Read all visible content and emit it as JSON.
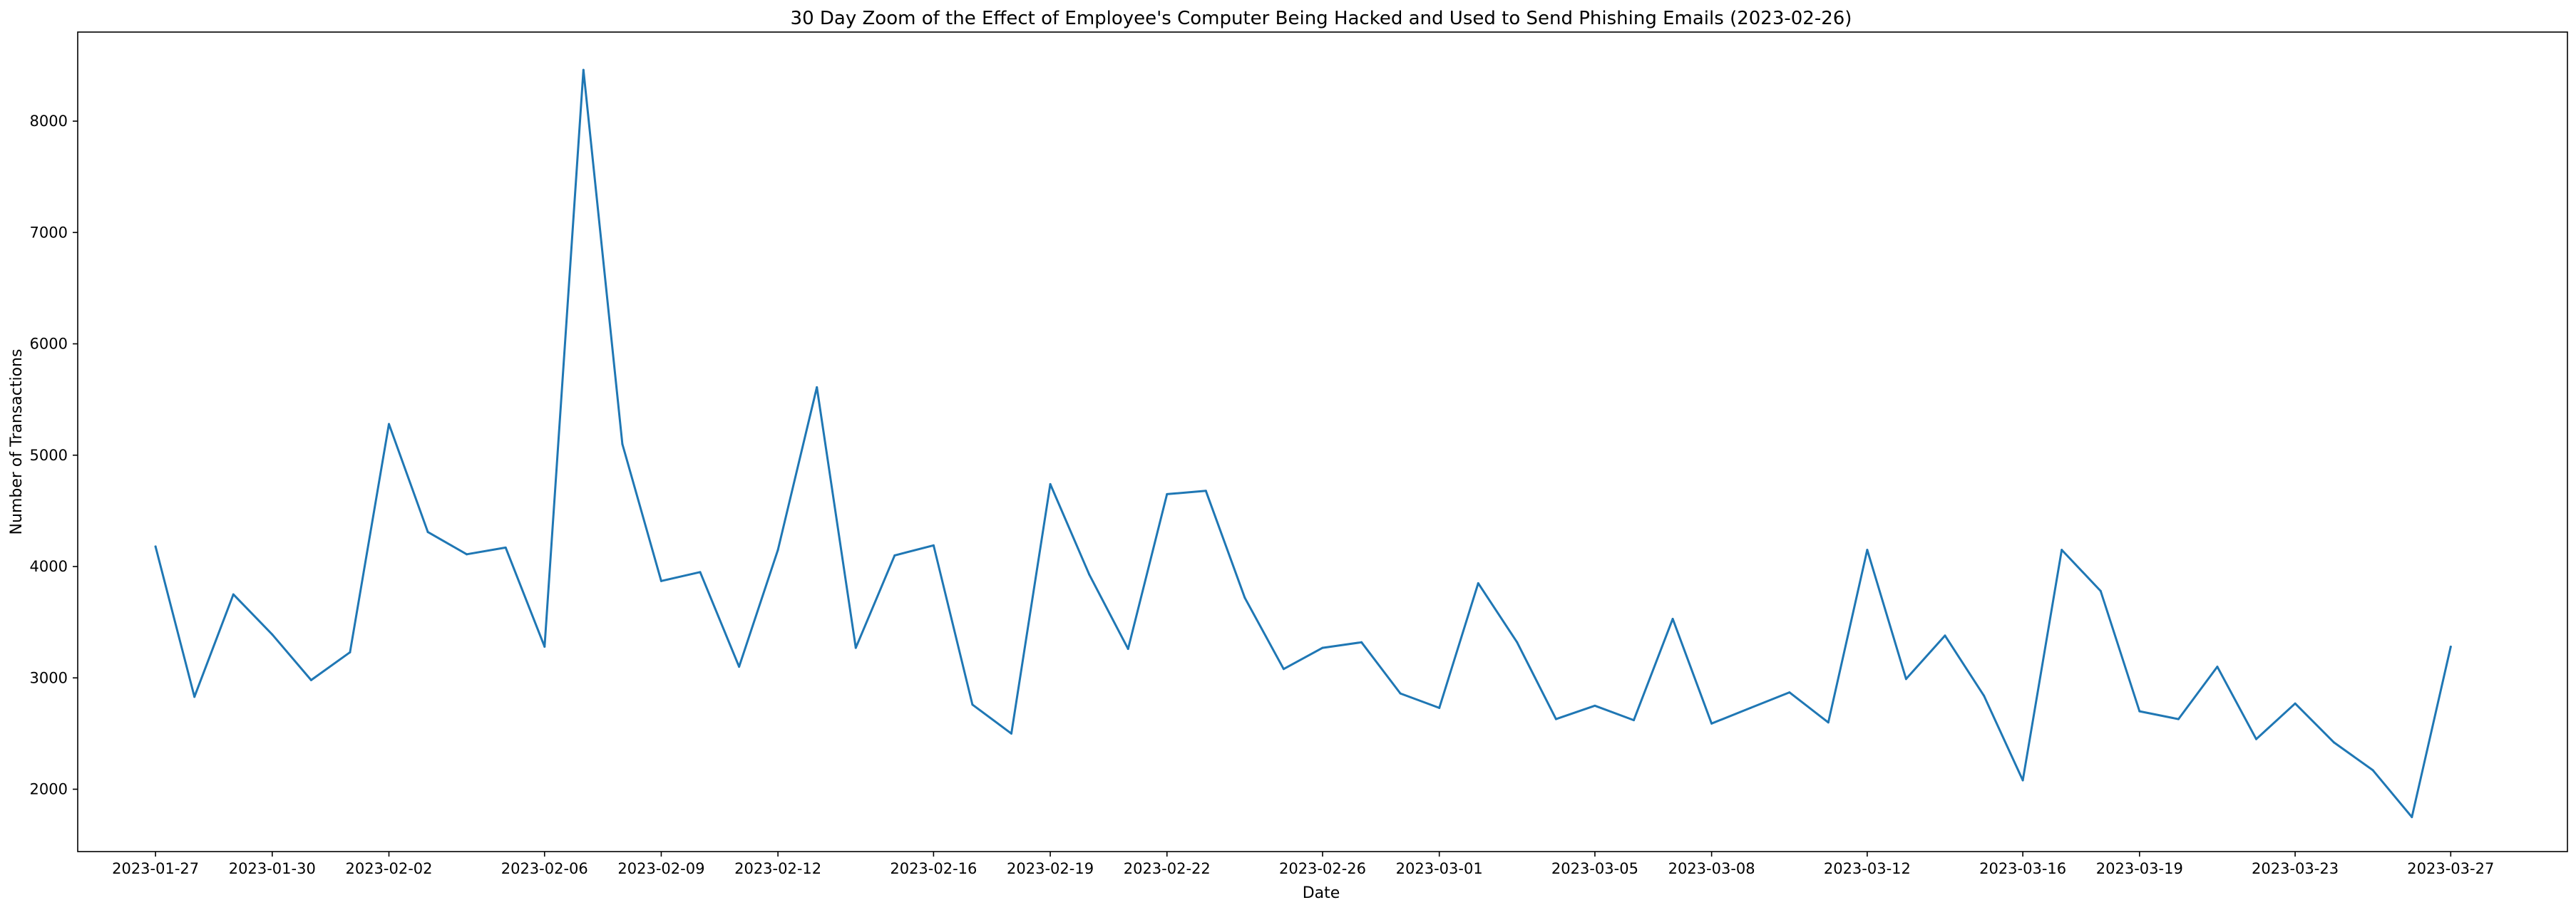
{
  "chart_data": {
    "type": "line",
    "title": "30 Day Zoom of the Effect of Employee's Computer Being Hacked and Used to Send Phishing Emails (2023-02-26)",
    "xlabel": "Date",
    "ylabel": "Number of Transactions",
    "x_tick_labels": [
      "2023-01-27",
      "2023-01-30",
      "2023-02-02",
      "2023-02-06",
      "2023-02-09",
      "2023-02-12",
      "2023-02-16",
      "2023-02-19",
      "2023-02-22",
      "2023-02-26",
      "2023-03-01",
      "2023-03-05",
      "2023-03-08",
      "2023-03-12",
      "2023-03-16",
      "2023-03-19",
      "2023-03-23",
      "2023-03-27"
    ],
    "y_ticks": [
      2000,
      3000,
      4000,
      5000,
      6000,
      7000,
      8000
    ],
    "xlim": [
      "2023-01-25",
      "2023-03-30"
    ],
    "ylim": [
      1440,
      8800
    ],
    "grid": false,
    "line_color": "#1f77b4",
    "x": [
      "2023-01-27",
      "2023-01-28",
      "2023-01-29",
      "2023-01-30",
      "2023-01-31",
      "2023-02-01",
      "2023-02-02",
      "2023-02-03",
      "2023-02-04",
      "2023-02-05",
      "2023-02-06",
      "2023-02-07",
      "2023-02-08",
      "2023-02-09",
      "2023-02-10",
      "2023-02-11",
      "2023-02-12",
      "2023-02-13",
      "2023-02-14",
      "2023-02-15",
      "2023-02-16",
      "2023-02-17",
      "2023-02-18",
      "2023-02-19",
      "2023-02-20",
      "2023-02-21",
      "2023-02-22",
      "2023-02-23",
      "2023-02-24",
      "2023-02-25",
      "2023-02-26",
      "2023-02-27",
      "2023-02-28",
      "2023-03-01",
      "2023-03-02",
      "2023-03-03",
      "2023-03-04",
      "2023-03-05",
      "2023-03-06",
      "2023-03-07",
      "2023-03-08",
      "2023-03-09",
      "2023-03-10",
      "2023-03-11",
      "2023-03-12",
      "2023-03-13",
      "2023-03-14",
      "2023-03-15",
      "2023-03-16",
      "2023-03-17",
      "2023-03-18",
      "2023-03-19",
      "2023-03-20",
      "2023-03-21",
      "2023-03-22",
      "2023-03-23",
      "2023-03-24",
      "2023-03-25",
      "2023-03-26",
      "2023-03-27"
    ],
    "values": [
      4180,
      2830,
      3750,
      3390,
      2980,
      3230,
      5280,
      4310,
      4110,
      4170,
      3280,
      8460,
      5100,
      3870,
      3950,
      3100,
      4150,
      5610,
      3270,
      4100,
      4190,
      2760,
      2500,
      4740,
      3930,
      3260,
      4650,
      4680,
      3720,
      3080,
      3270,
      3320,
      2860,
      2730,
      3850,
      3320,
      2630,
      2750,
      2620,
      3530,
      2590,
      2730,
      2870,
      2600,
      4150,
      2990,
      3380,
      2840,
      2080,
      4150,
      3780,
      2700,
      2630,
      3100,
      2450,
      2770,
      2420,
      2170,
      1750,
      3280
    ]
  }
}
